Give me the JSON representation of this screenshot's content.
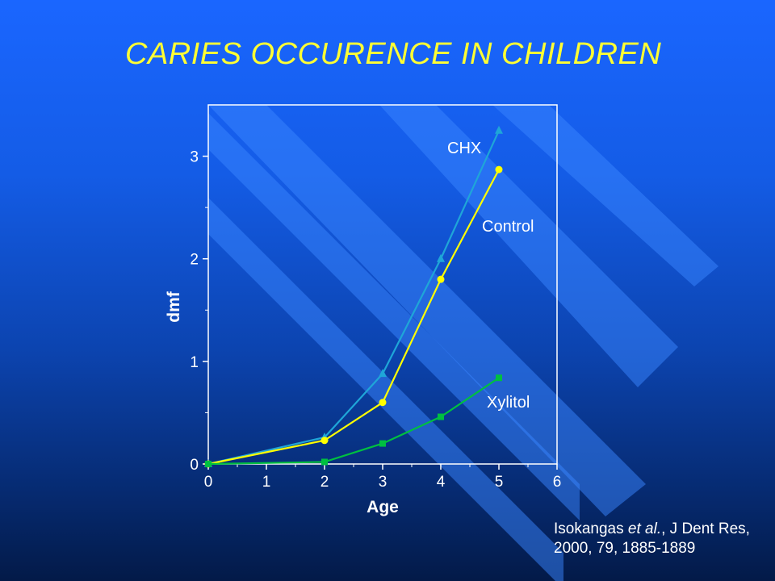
{
  "slide": {
    "title": "CARIES OCCURENCE IN CHILDREN",
    "citation": {
      "authors": "Isokangas",
      "et_al": "et al.",
      "journal": ", J Dent Res,",
      "line2": "2000, 79, 1885-1889"
    }
  },
  "chart_data": {
    "type": "line",
    "xlabel": "Age",
    "ylabel": "dmf",
    "xlim": [
      0,
      6
    ],
    "ylim": [
      0,
      3.5
    ],
    "xticks": [
      0,
      1,
      2,
      3,
      4,
      5,
      6
    ],
    "yticks": [
      0,
      1,
      2,
      3
    ],
    "grid": false,
    "legend": "inline labels near series",
    "series": [
      {
        "name": "CHX",
        "color": "#1fa6d8",
        "marker": "triangle",
        "x": [
          0,
          2,
          3,
          4,
          5
        ],
        "values": [
          0,
          0.26,
          0.88,
          2.0,
          3.25
        ]
      },
      {
        "name": "Control",
        "color": "#ffff00",
        "marker": "circle",
        "x": [
          0,
          2,
          3,
          4,
          5
        ],
        "values": [
          0,
          0.23,
          0.6,
          1.8,
          2.87
        ]
      },
      {
        "name": "Xylitol",
        "color": "#00c040",
        "marker": "square",
        "x": [
          0,
          2,
          3,
          4,
          5
        ],
        "values": [
          0,
          0.02,
          0.2,
          0.46,
          0.84
        ]
      }
    ]
  }
}
